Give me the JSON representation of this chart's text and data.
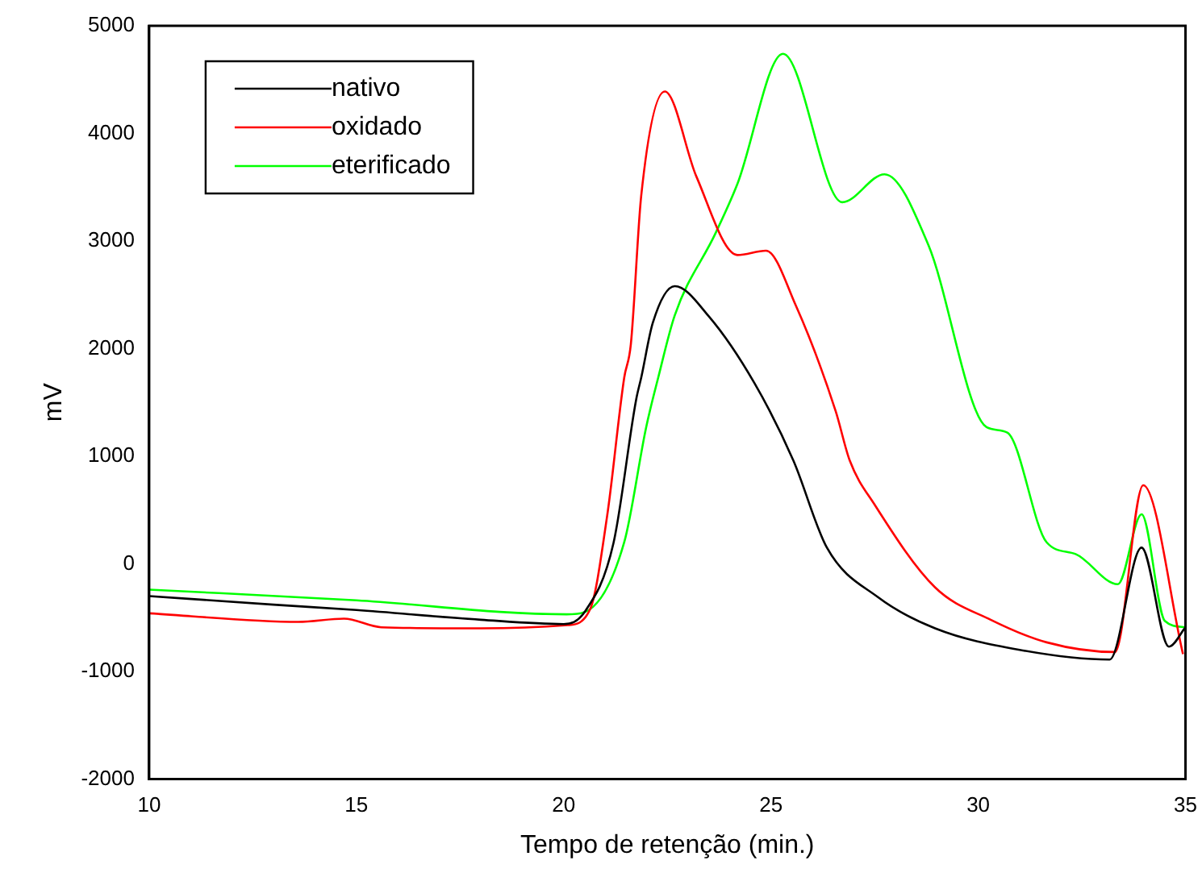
{
  "chart_data": {
    "type": "line",
    "xlabel": "Tempo de retenção (min.)",
    "ylabel": "mV",
    "xlim": [
      10,
      35
    ],
    "xticks": [
      10,
      15,
      20,
      25,
      30,
      35
    ],
    "ylim": [
      -2000,
      5000
    ],
    "yticks": [
      -2000,
      -1000,
      0,
      1000,
      2000,
      3000,
      4000,
      5000
    ],
    "grid": false,
    "legend": "top left",
    "marker": "none",
    "line_style": "solid",
    "series": [
      {
        "name": "nativo",
        "color": "#000000",
        "x": [
          10,
          13,
          15,
          18,
          20,
          20.5,
          21.2,
          21.75,
          21.87,
          22.15,
          22.68,
          23.5,
          24.6,
          25.54,
          26.35,
          27.58,
          28.96,
          31.0,
          33.17,
          33.94,
          34.6,
          35
        ],
        "values": [
          -300,
          -380,
          -430,
          -520,
          -560,
          -450,
          190,
          1530,
          1730,
          2240,
          2580,
          2300,
          1680,
          960,
          150,
          -310,
          -600,
          -800,
          -890,
          150,
          -770,
          -590
        ]
      },
      {
        "name": "oxidado",
        "color": "#ff0000",
        "x": [
          10,
          13.6,
          14.7,
          15.6,
          18,
          20.1,
          20.64,
          21.05,
          21.46,
          21.62,
          21.87,
          22.44,
          23.2,
          24.19,
          24.88,
          25.6,
          26.56,
          26.9,
          27.5,
          28.96,
          30.3,
          31.65,
          33.3,
          33.98,
          34.94
        ],
        "values": [
          -460,
          -540,
          -510,
          -590,
          -600,
          -570,
          -420,
          450,
          1730,
          2040,
          3420,
          4390,
          3600,
          2870,
          2910,
          2400,
          1420,
          960,
          550,
          -220,
          -520,
          -730,
          -820,
          730,
          -840
        ]
      },
      {
        "name": "eterificado",
        "color": "#00ff00",
        "x": [
          10,
          15,
          20.07,
          20.5,
          21.46,
          21.99,
          22.28,
          22.68,
          23.66,
          24.19,
          25.29,
          26.72,
          27.74,
          28.8,
          30.2,
          30.7,
          31.65,
          32.35,
          33.37,
          33.94,
          34.5,
          35
        ],
        "values": [
          -240,
          -340,
          -470,
          -450,
          200,
          1270,
          1730,
          2310,
          3070,
          3530,
          4740,
          3360,
          3620,
          2960,
          1270,
          1220,
          200,
          90,
          -190,
          460,
          -530,
          -590
        ]
      }
    ]
  }
}
